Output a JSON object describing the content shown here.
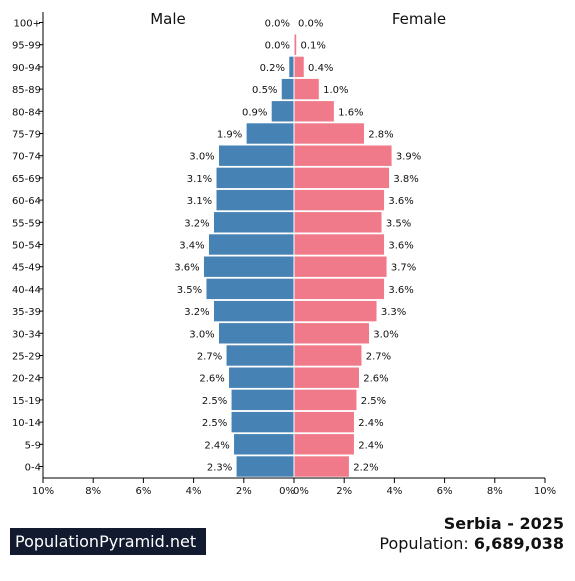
{
  "chart_data": {
    "type": "bar",
    "orientation": "horizontal-population-pyramid",
    "categories": [
      "100+",
      "95-99",
      "90-94",
      "85-89",
      "80-84",
      "75-79",
      "70-74",
      "65-69",
      "60-64",
      "55-59",
      "50-54",
      "45-49",
      "40-44",
      "35-39",
      "30-34",
      "25-29",
      "20-24",
      "15-19",
      "10-14",
      "5-9",
      "0-4"
    ],
    "series": [
      {
        "name": "Male",
        "color": "#4682b4",
        "values": [
          0.0,
          0.0,
          0.2,
          0.5,
          0.9,
          1.9,
          3.0,
          3.1,
          3.1,
          3.2,
          3.4,
          3.6,
          3.5,
          3.2,
          3.0,
          2.7,
          2.6,
          2.5,
          2.5,
          2.4,
          2.3
        ],
        "labels": [
          "0.0%",
          "0.0%",
          "0.2%",
          "0.5%",
          "0.9%",
          "1.9%",
          "3.0%",
          "3.1%",
          "3.1%",
          "3.2%",
          "3.4%",
          "3.6%",
          "3.5%",
          "3.2%",
          "3.0%",
          "2.7%",
          "2.6%",
          "2.5%",
          "2.5%",
          "2.4%",
          "2.3%"
        ]
      },
      {
        "name": "Female",
        "color": "#f07a89",
        "values": [
          0.0,
          0.1,
          0.4,
          1.0,
          1.6,
          2.8,
          3.9,
          3.8,
          3.6,
          3.5,
          3.6,
          3.7,
          3.6,
          3.3,
          3.0,
          2.7,
          2.6,
          2.5,
          2.4,
          2.4,
          2.2
        ],
        "labels": [
          "0.0%",
          "0.1%",
          "0.4%",
          "1.0%",
          "1.6%",
          "2.8%",
          "3.9%",
          "3.8%",
          "3.6%",
          "3.5%",
          "3.6%",
          "3.7%",
          "3.6%",
          "3.3%",
          "3.0%",
          "2.7%",
          "2.6%",
          "2.5%",
          "2.4%",
          "2.4%",
          "2.2%"
        ]
      }
    ],
    "xlim": [
      -10,
      10
    ],
    "x_ticks": [
      "10%",
      "8%",
      "6%",
      "4%",
      "2%",
      "0%",
      "0%",
      "2%",
      "4%",
      "6%",
      "8%",
      "10%"
    ],
    "grid": false
  },
  "footer": {
    "brand": "PopulationPyramid.net",
    "title": "Serbia - 2025",
    "population_label": "Population:",
    "population_value": "6,689,038"
  }
}
